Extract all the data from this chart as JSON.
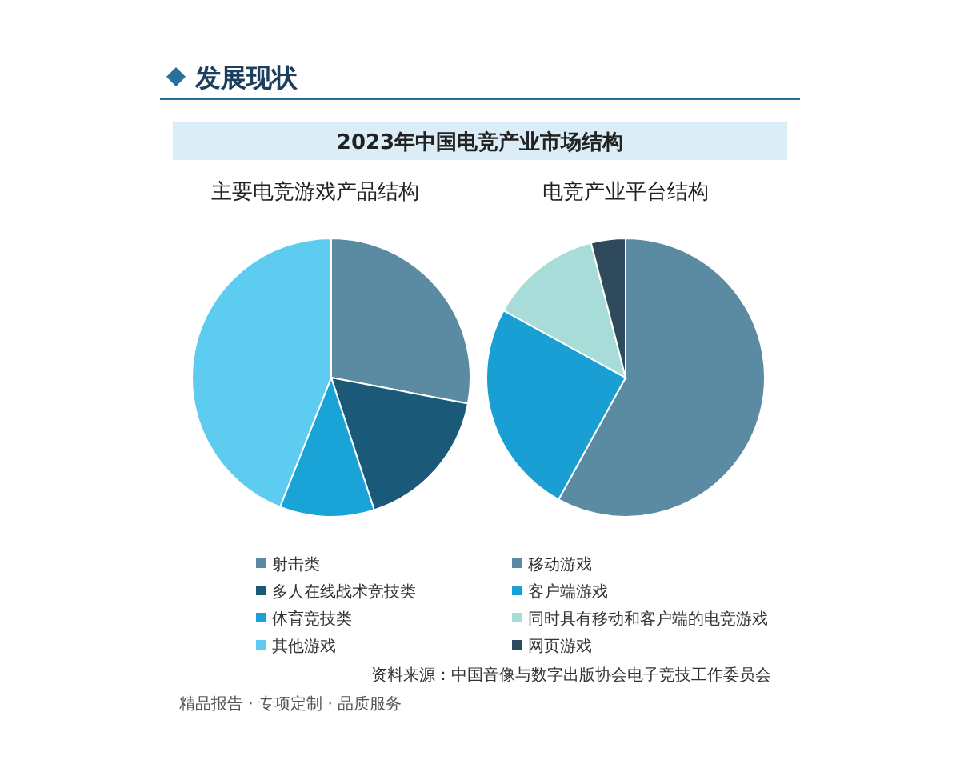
{
  "chart_data": [
    {
      "type": "other",
      "title": "发展现状",
      "subtitle": "2023年中国电竞产业市场结构",
      "annotations": [
        "资料来源：中国音像与数字出版协会电子竞技工作委员会",
        "精品报告 · 专项定制 · 品质服务"
      ]
    },
    {
      "type": "pie",
      "title": "主要电竞游戏产品结构",
      "categories": [
        "射击类",
        "多人在线战术竞技类",
        "体育竞技类",
        "其他游戏"
      ],
      "values": [
        28,
        17,
        11,
        44
      ],
      "colors": [
        "#5b8aa3",
        "#1a5a78",
        "#1aa3d6",
        "#5ecbf0"
      ],
      "legend": "bottom"
    },
    {
      "type": "pie",
      "title": "电竞产业平台结构",
      "categories": [
        "移动游戏",
        "客户端游戏",
        "同时具有移动和客户端的电竞游戏",
        "网页游戏"
      ],
      "values": [
        58,
        25,
        13,
        4
      ],
      "colors": [
        "#5b8aa3",
        "#1a9fd4",
        "#a8dcd9",
        "#2e4a5c"
      ],
      "legend": "bottom"
    }
  ]
}
